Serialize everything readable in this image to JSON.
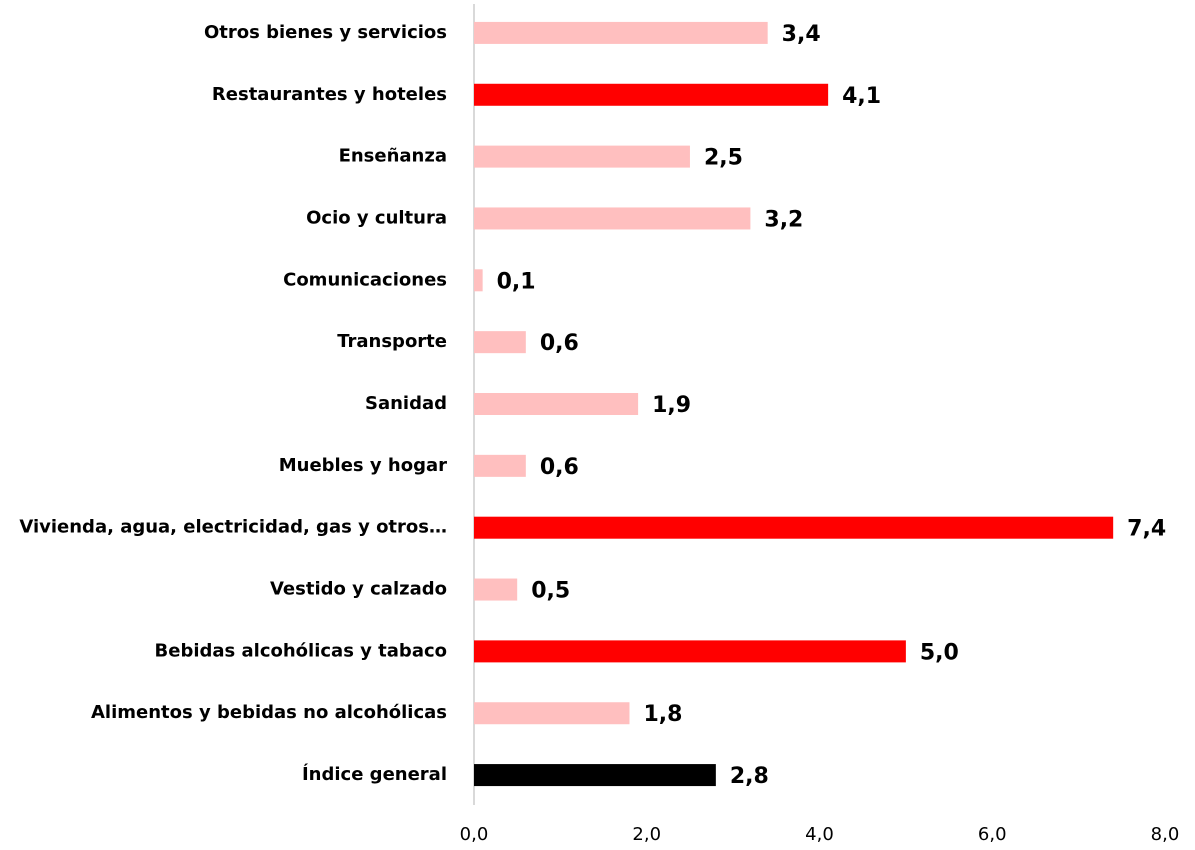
{
  "chart_data": {
    "type": "bar",
    "orientation": "horizontal",
    "categories": [
      "Otros bienes y servicios",
      "Restaurantes y hoteles",
      "Enseñanza",
      "Ocio y cultura",
      "Comunicaciones",
      "Transporte",
      "Sanidad",
      "Muebles y hogar",
      "Vivienda, agua, electricidad, gas y otros…",
      "Vestido y calzado",
      "Bebidas alcohólicas y tabaco",
      "Alimentos y bebidas no alcohólicas",
      "Índice general"
    ],
    "values": [
      3.4,
      4.1,
      2.5,
      3.2,
      0.1,
      0.6,
      1.9,
      0.6,
      7.4,
      0.5,
      5.0,
      1.8,
      2.8
    ],
    "value_labels": [
      "3,4",
      "4,1",
      "2,5",
      "3,2",
      "0,1",
      "0,6",
      "1,9",
      "0,6",
      "7,4",
      "0,5",
      "5,0",
      "1,8",
      "2,8"
    ],
    "colors": [
      "#ffbfbf",
      "#ff0000",
      "#ffbfbf",
      "#ffbfbf",
      "#ffbfbf",
      "#ffbfbf",
      "#ffbfbf",
      "#ffbfbf",
      "#ff0000",
      "#ffbfbf",
      "#ff0000",
      "#ffbfbf",
      "#000000"
    ],
    "xlim": [
      0,
      8
    ],
    "xticks": [
      {
        "value": 0,
        "label": "0,0"
      },
      {
        "value": 2,
        "label": "2,0"
      },
      {
        "value": 4,
        "label": "4,0"
      },
      {
        "value": 6,
        "label": "6,0"
      },
      {
        "value": 8,
        "label": "8,0"
      }
    ],
    "grid": false
  }
}
